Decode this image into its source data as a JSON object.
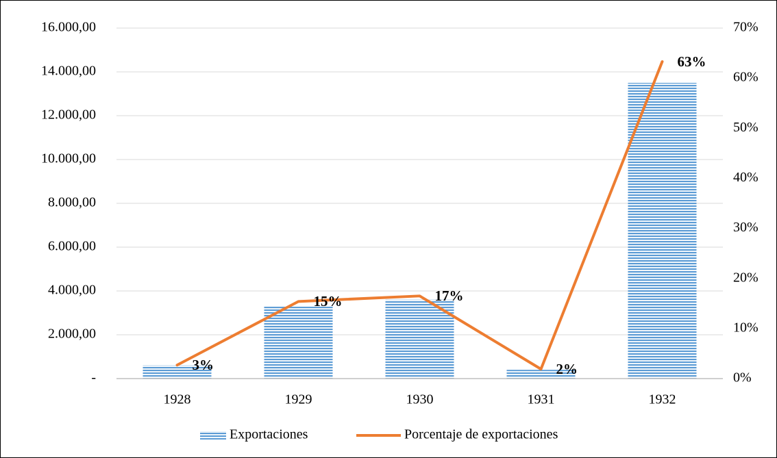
{
  "chart_data": {
    "type": "bar-line",
    "categories": [
      "1928",
      "1929",
      "1930",
      "1931",
      "1932"
    ],
    "series": [
      {
        "name": "Exportaciones",
        "type": "bar",
        "color": "#5b9bd5",
        "values": [
          600,
          3280,
          3600,
          400,
          13500
        ]
      },
      {
        "name": "Porcentaje de exportaciones",
        "type": "line",
        "axis": "y2",
        "color": "#ed7d31",
        "values": [
          2.7,
          15.4,
          16.5,
          1.9,
          63.3
        ],
        "value_labels": [
          "3%",
          "15%",
          "17%",
          "2%",
          "63%"
        ]
      }
    ],
    "ylim": [
      0,
      16000
    ],
    "yticks": [
      {
        "value": 0,
        "label": "-"
      },
      {
        "value": 2000,
        "label": "2.000,00"
      },
      {
        "value": 4000,
        "label": "4.000,00"
      },
      {
        "value": 6000,
        "label": "6.000,00"
      },
      {
        "value": 8000,
        "label": "8.000,00"
      },
      {
        "value": 10000,
        "label": "10.000,00"
      },
      {
        "value": 12000,
        "label": "12.000,00"
      },
      {
        "value": 14000,
        "label": "14.000,00"
      },
      {
        "value": 16000,
        "label": "16.000,00"
      }
    ],
    "y2lim": [
      0,
      70
    ],
    "y2ticks": [
      {
        "value": 0,
        "label": "0%"
      },
      {
        "value": 10,
        "label": "10%"
      },
      {
        "value": 20,
        "label": "20%"
      },
      {
        "value": 30,
        "label": "30%"
      },
      {
        "value": 40,
        "label": "40%"
      },
      {
        "value": 50,
        "label": "50%"
      },
      {
        "value": 60,
        "label": "60%"
      },
      {
        "value": 70,
        "label": "70%"
      }
    ],
    "grid": true,
    "legend": "bottom"
  }
}
